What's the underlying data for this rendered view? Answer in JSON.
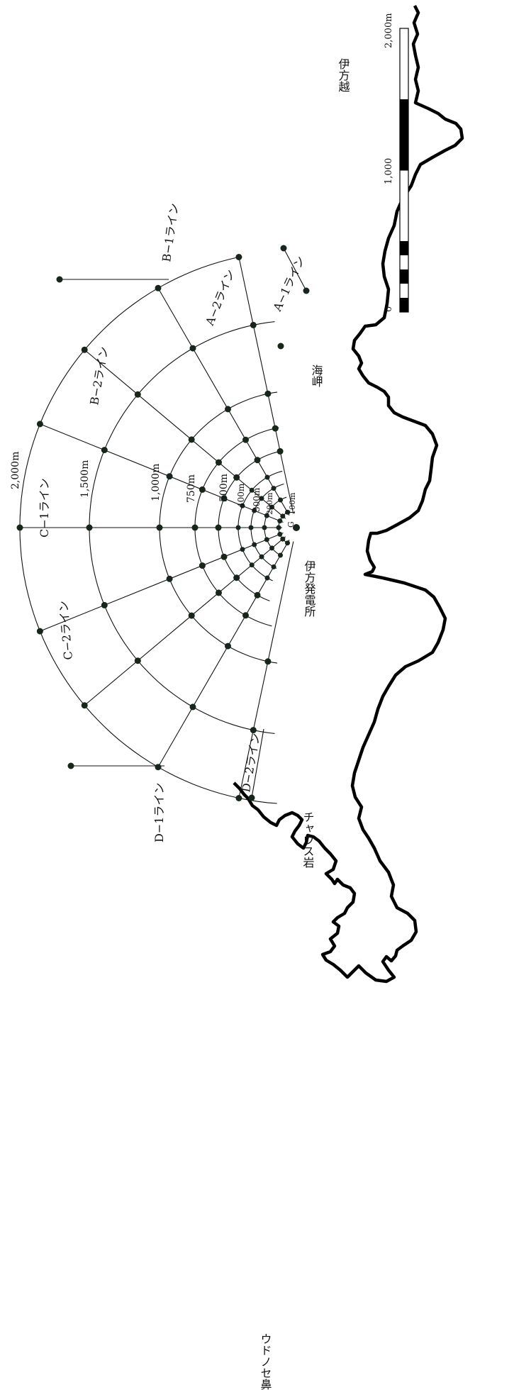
{
  "place_names": {
    "iyokatagoshi": "伊方越",
    "misaki": "海岬",
    "power_plant": "伊方発電所",
    "chausu": "チャウス岩",
    "udonose": "ウドノセ鼻"
  },
  "ring_labels": {
    "r2000": "2,000m",
    "r1500": "1,500m",
    "r1000": "1,000m",
    "r750": "750m",
    "r500": "500m",
    "r400": "400m",
    "r300": "300m",
    "r200": "200m",
    "r100": "100m",
    "center": "G"
  },
  "line_labels": {
    "A1": "A−1ライン",
    "A2": "A−2ライン",
    "B1": "B−1ライン",
    "B2": "B−2ライン",
    "C1": "C−1ライン",
    "C2": "C−2ライン",
    "D1": "D−1ライン",
    "D2": "D−2ライン"
  },
  "scale_bar": {
    "labels": [
      "0",
      "1,000",
      "2,000m"
    ]
  },
  "colors": {
    "coast": "#000000",
    "line": "#111111",
    "station": "#17251a"
  }
}
